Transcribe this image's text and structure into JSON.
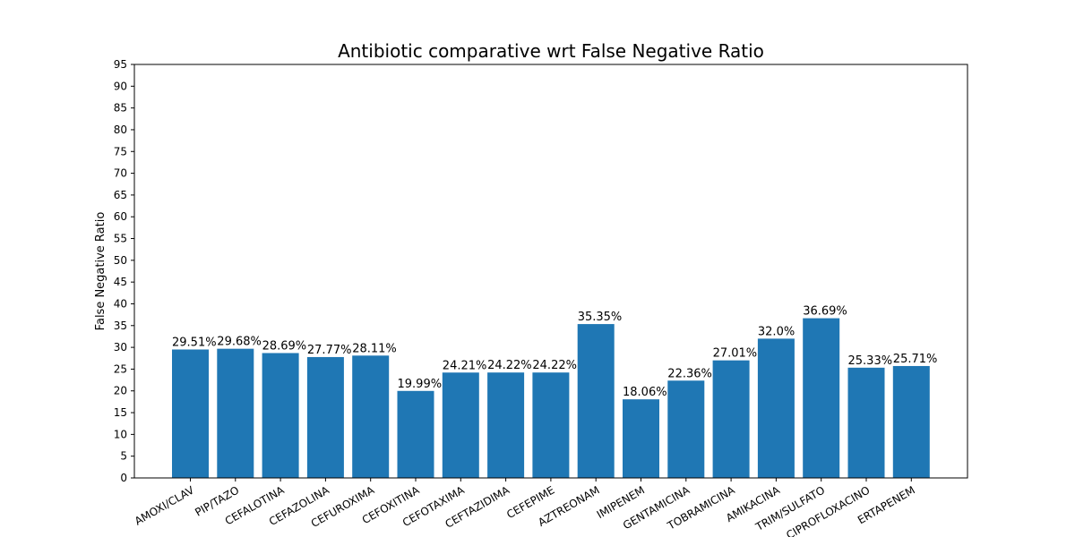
{
  "chart_data": {
    "type": "bar",
    "title": "Antibiotic comparative wrt False Negative Ratio",
    "xlabel": "",
    "ylabel": "False Negative Ratio",
    "ylim": [
      0,
      95
    ],
    "y_ticks": [
      "0",
      "5",
      "10",
      "15",
      "20",
      "25",
      "30",
      "35",
      "40",
      "45",
      "50",
      "55",
      "60",
      "65",
      "70",
      "75",
      "80",
      "85",
      "90",
      "95"
    ],
    "grid": false,
    "bar_color": "#1f77b4",
    "categories": [
      "AMOXI/CLAV",
      "PIP/TAZO",
      "CEFALOTINA",
      "CEFAZOLINA",
      "CEFUROXIMA",
      "CEFOXITINA",
      "CEFOTAXIMA",
      "CEFTAZIDIMA",
      "CEFEPIME",
      "AZTREONAM",
      "IMIPENEM",
      "GENTAMICINA",
      "TOBRAMICINA",
      "AMIKACINA",
      "TRIM/SULFATO",
      "CIPROFLOXACINO",
      "ERTAPENEM"
    ],
    "values": [
      29.51,
      29.68,
      28.69,
      27.77,
      28.11,
      19.99,
      24.21,
      24.22,
      24.22,
      35.35,
      18.06,
      22.36,
      27.01,
      32.0,
      36.69,
      25.33,
      25.71
    ],
    "data_labels": [
      "29.51%",
      "29.68%",
      "28.69%",
      "27.77%",
      "28.11%",
      "19.99%",
      "24.21%",
      "24.22%",
      "24.22%",
      "35.35%",
      "18.06%",
      "22.36%",
      "27.01%",
      "32.0%",
      "36.69%",
      "25.33%",
      "25.71%"
    ]
  }
}
